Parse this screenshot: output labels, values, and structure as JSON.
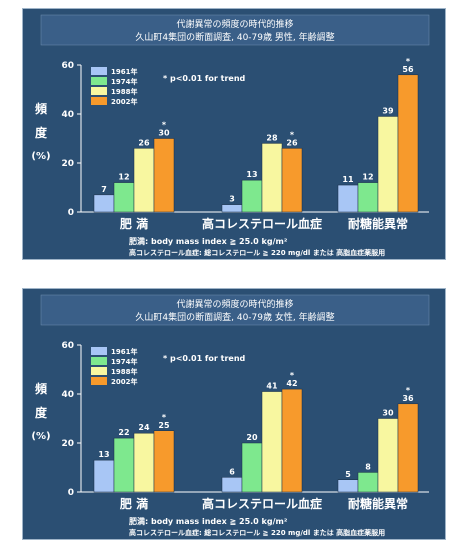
{
  "chart_data": [
    {
      "type": "bar",
      "title": "代謝異常の頻度の時代的推移",
      "subtitle": "久山町4集団の断面調査, 40-79歳 男性, 年齢調整",
      "ylabel": [
        "頻",
        "度",
        "(%)"
      ],
      "ylim": [
        0,
        60
      ],
      "yticks": [
        "0",
        "20",
        "40",
        "60"
      ],
      "categories": [
        "肥 満",
        "高コレステロール血症",
        "耐糖能異常"
      ],
      "series": [
        {
          "name": "1961年",
          "color": "#a8c6f5",
          "values": [
            7,
            3,
            11
          ],
          "labels": [
            "7",
            "3",
            "11"
          ]
        },
        {
          "name": "1974年",
          "color": "#7ee88e",
          "values": [
            12,
            13,
            12
          ],
          "labels": [
            "12",
            "13",
            "12"
          ]
        },
        {
          "name": "1988年",
          "color": "#f8f7a0",
          "values": [
            26,
            28,
            39
          ],
          "labels": [
            "26",
            "28",
            "39"
          ]
        },
        {
          "name": "2002年",
          "color": "#f79a2c",
          "values": [
            30,
            26,
            56
          ],
          "labels": [
            "30",
            "26",
            "56"
          ]
        }
      ],
      "stars": [
        "*",
        "*",
        "*"
      ],
      "legend_note": "* p<0.01 for trend",
      "legend": "top-left",
      "footnote1": "肥満: body mass index ≧ 25.0 kg/m²",
      "footnote2": "高コレステロール血症: 総コレステロール ≧ 220 mg/dl または 高脂血症薬服用"
    },
    {
      "type": "bar",
      "title": "代謝異常の頻度の時代的推移",
      "subtitle": "久山町4集団の断面調査, 40-79歳 女性, 年齢調整",
      "ylabel": [
        "頻",
        "度",
        "(%)"
      ],
      "ylim": [
        0,
        60
      ],
      "yticks": [
        "0",
        "20",
        "40",
        "60"
      ],
      "categories": [
        "肥 満",
        "高コレステロール血症",
        "耐糖能異常"
      ],
      "series": [
        {
          "name": "1961年",
          "color": "#a8c6f5",
          "values": [
            13,
            6,
            5
          ],
          "labels": [
            "13",
            "6",
            "5"
          ]
        },
        {
          "name": "1974年",
          "color": "#7ee88e",
          "values": [
            22,
            20,
            8
          ],
          "labels": [
            "22",
            "20",
            "8"
          ]
        },
        {
          "name": "1988年",
          "color": "#f8f7a0",
          "values": [
            24,
            41,
            30
          ],
          "labels": [
            "24",
            "41",
            "30"
          ]
        },
        {
          "name": "2002年",
          "color": "#f79a2c",
          "values": [
            25,
            42,
            36
          ],
          "labels": [
            "25",
            "42",
            "36"
          ]
        }
      ],
      "stars": [
        "*",
        "*",
        "*"
      ],
      "legend_note": "* p<0.01 for trend",
      "legend": "top-left",
      "footnote1": "肥満: body mass index ≧ 25.0 kg/m²",
      "footnote2": "高コレステロール血症: 総コレステロール ≧ 220 mg/dl または 高脂血症薬服用"
    }
  ]
}
